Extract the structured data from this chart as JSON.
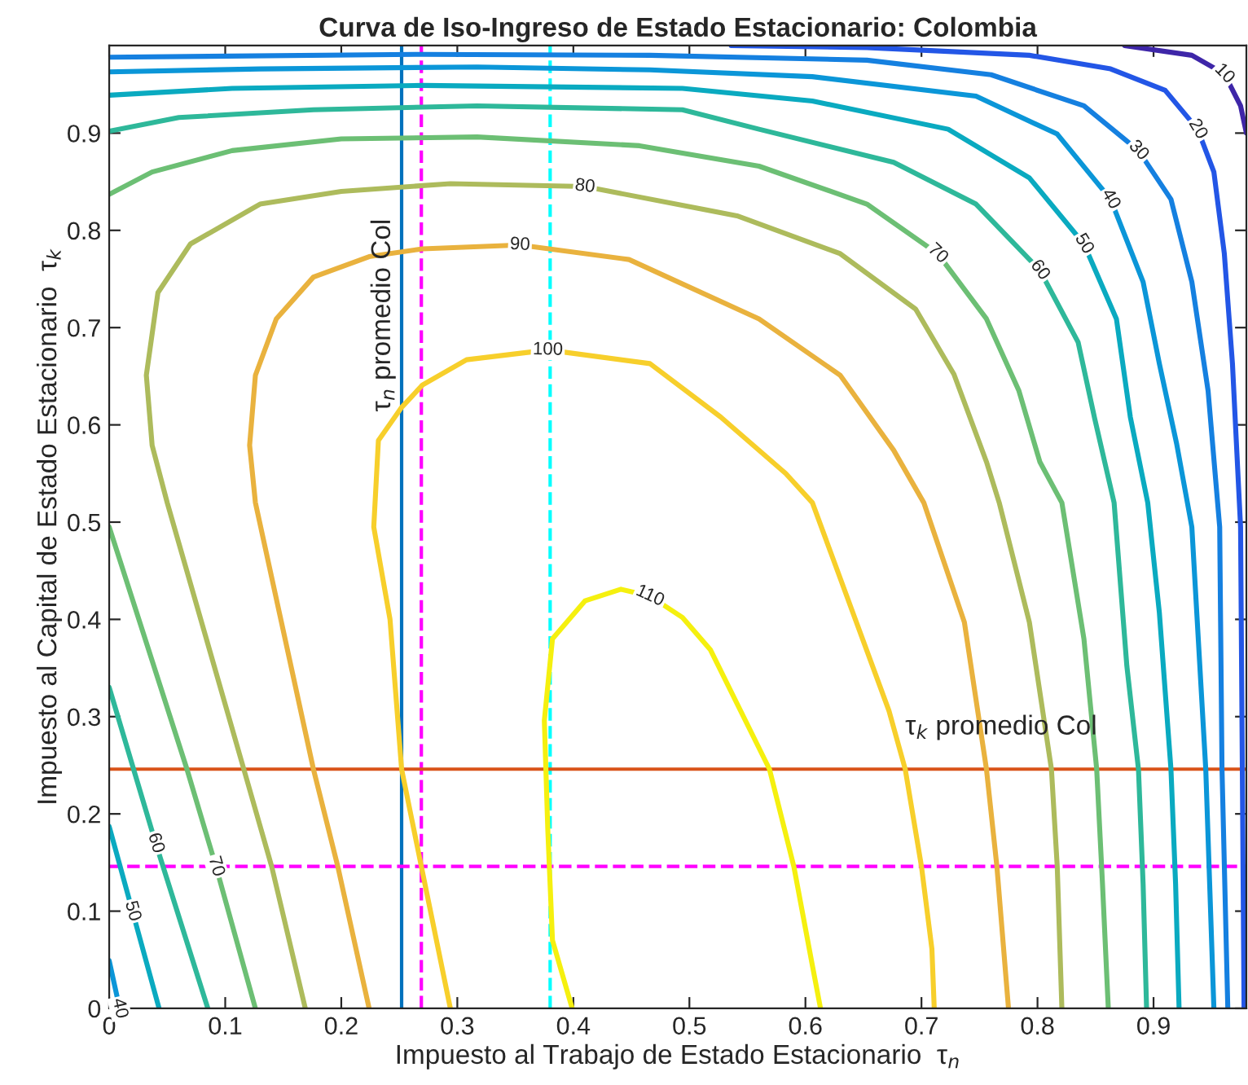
{
  "chart_data": {
    "type": "line",
    "title": "Curva de Iso-Ingreso de Estado Estacionario: Colombia",
    "xlabel": "Impuesto al Trabajo de Estado Estacionario  τ$_{n}$",
    "ylabel": "Impuesto al Capital de Estado Estacionario  τ$_{k}$",
    "xlim": [
      0,
      0.98
    ],
    "ylim": [
      0,
      0.99
    ],
    "xticks": [
      0,
      0.1,
      0.2,
      0.3,
      0.4,
      0.5,
      0.6,
      0.7,
      0.8,
      0.9
    ],
    "yticks": [
      0,
      0.1,
      0.2,
      0.3,
      0.4,
      0.5,
      0.6,
      0.7,
      0.8,
      0.9
    ],
    "grid": false,
    "legend": false,
    "line_style": "solid",
    "series": [
      {
        "name": "10",
        "color": "#3e26a8",
        "x": [
          0.875,
          0.933,
          0.961,
          0.975,
          0.98
        ],
        "values": [
          0.99,
          0.98,
          0.961,
          0.928,
          0.9
        ]
      },
      {
        "name": "20",
        "color": "#2356e6",
        "x": [
          0.536,
          0.653,
          0.793,
          0.863,
          0.91,
          0.938,
          0.952,
          0.961,
          0.968,
          0.975,
          0.978
        ],
        "values": [
          0.99,
          0.988,
          0.98,
          0.966,
          0.944,
          0.904,
          0.86,
          0.776,
          0.663,
          0.495,
          0
        ]
      },
      {
        "name": "30",
        "color": "#1580e0",
        "x": [
          0,
          0.27,
          0.466,
          0.653,
          0.76,
          0.84,
          0.887,
          0.915,
          0.933,
          0.947,
          0.957,
          0.959,
          0.964
        ],
        "values": [
          0.978,
          0.981,
          0.98,
          0.975,
          0.96,
          0.928,
          0.882,
          0.832,
          0.747,
          0.635,
          0.495,
          0.246,
          0
        ]
      },
      {
        "name": "40",
        "color": "#0b96d8",
        "x": [
          0,
          0.13,
          0.317,
          0.466,
          0.606,
          0.747,
          0.817,
          0.863,
          0.891,
          0.905,
          0.92,
          0.933,
          0.945,
          0.952
        ],
        "values": [
          0.963,
          0.966,
          0.968,
          0.965,
          0.958,
          0.938,
          0.899,
          0.832,
          0.747,
          0.663,
          0.58,
          0.495,
          0.246,
          0
        ]
      },
      {
        "name": "50",
        "color": "#0aaac0",
        "x": [
          0,
          0.106,
          0.27,
          0.494,
          0.606,
          0.723,
          0.793,
          0.84,
          0.868,
          0.88,
          0.895,
          0.905,
          0.915,
          0.919,
          0.922
        ],
        "values": [
          0.939,
          0.946,
          0.949,
          0.946,
          0.933,
          0.904,
          0.854,
          0.786,
          0.709,
          0.608,
          0.52,
          0.407,
          0.246,
          0.128,
          0
        ]
      },
      {
        "name": "60",
        "color": "#2eb89a",
        "x": [
          0,
          0.06,
          0.176,
          0.317,
          0.494,
          0.56,
          0.676,
          0.747,
          0.802,
          0.835,
          0.849,
          0.866,
          0.877,
          0.887,
          0.891,
          0.894
        ],
        "values": [
          0.902,
          0.916,
          0.924,
          0.928,
          0.924,
          0.904,
          0.87,
          0.827,
          0.759,
          0.685,
          0.608,
          0.52,
          0.352,
          0.246,
          0.128,
          0
        ]
      },
      {
        "name": "70",
        "color": "#6cbf74",
        "x": [
          0,
          0.037,
          0.106,
          0.2,
          0.317,
          0.457,
          0.56,
          0.653,
          0.714,
          0.756,
          0.784,
          0.802,
          0.821,
          0.84,
          0.851,
          0.856,
          0.861
        ],
        "values": [
          0.837,
          0.86,
          0.882,
          0.894,
          0.896,
          0.887,
          0.866,
          0.827,
          0.776,
          0.709,
          0.635,
          0.562,
          0.52,
          0.38,
          0.246,
          0.128,
          0
        ]
      },
      {
        "name": "80",
        "color": "#adbb5c",
        "x": [
          0.169,
          0.14,
          0.116,
          0.05,
          0.037,
          0.032,
          0.042,
          0.07,
          0.13,
          0.2,
          0.294,
          0.41,
          0.541,
          0.63,
          0.695,
          0.728,
          0.756,
          0.767,
          0.793,
          0.812,
          0.817,
          0.821
        ],
        "values": [
          0,
          0.146,
          0.246,
          0.52,
          0.579,
          0.651,
          0.736,
          0.786,
          0.827,
          0.84,
          0.848,
          0.845,
          0.815,
          0.776,
          0.719,
          0.652,
          0.562,
          0.52,
          0.397,
          0.246,
          0.146,
          0
        ]
      },
      {
        "name": "90",
        "color": "#e9b23e",
        "x": [
          0.224,
          0.197,
          0.176,
          0.126,
          0.121,
          0.126,
          0.144,
          0.176,
          0.224,
          0.27,
          0.354,
          0.448,
          0.56,
          0.63,
          0.676,
          0.702,
          0.737,
          0.756,
          0.765,
          0.775
        ],
        "values": [
          0,
          0.146,
          0.246,
          0.52,
          0.579,
          0.651,
          0.709,
          0.752,
          0.773,
          0.781,
          0.785,
          0.77,
          0.709,
          0.651,
          0.574,
          0.52,
          0.397,
          0.246,
          0.146,
          0
        ]
      },
      {
        "name": "100",
        "color": "#f7cf2b",
        "x": [
          0.294,
          0.269,
          0.252,
          0.242,
          0.228,
          0.232,
          0.252,
          0.27,
          0.308,
          0.378,
          0.466,
          0.527,
          0.583,
          0.606,
          0.672,
          0.686,
          0.7,
          0.709,
          0.711
        ],
        "values": [
          0,
          0.146,
          0.246,
          0.4,
          0.495,
          0.584,
          0.618,
          0.641,
          0.667,
          0.677,
          0.663,
          0.608,
          0.55,
          0.52,
          0.306,
          0.246,
          0.146,
          0.061,
          0
        ]
      },
      {
        "name": "110",
        "color": "#f5f00f",
        "x": [
          0.399,
          0.382,
          0.378,
          0.375,
          0.382,
          0.41,
          0.441,
          0.466,
          0.494,
          0.518,
          0.569,
          0.59,
          0.606,
          0.613
        ],
        "values": [
          0,
          0.07,
          0.183,
          0.296,
          0.38,
          0.419,
          0.431,
          0.424,
          0.402,
          0.369,
          0.246,
          0.146,
          0.044,
          0
        ]
      },
      {
        "name": "40",
        "color": "#0b96d8",
        "x": [
          0,
          0.009
        ],
        "values": [
          0.049,
          0
        ]
      },
      {
        "name": "50",
        "color": "#0aaac0",
        "x": [
          0,
          0.02,
          0.043
        ],
        "values": [
          0.187,
          0.1,
          0
        ]
      },
      {
        "name": "60",
        "color": "#2eb89a",
        "x": [
          0,
          0.04,
          0.085
        ],
        "values": [
          0.33,
          0.17,
          0
        ]
      },
      {
        "name": "70",
        "color": "#6cbf74",
        "x": [
          0,
          0.067,
          0.092,
          0.126
        ],
        "values": [
          0.495,
          0.246,
          0.146,
          0
        ]
      }
    ],
    "ref_lines": [
      {
        "axis": "x",
        "value": 0.252,
        "label": "τ$_{n}$ promedio Col",
        "color": "#0072bd",
        "line_style": "solid"
      },
      {
        "axis": "x",
        "value": 0.269,
        "label": null,
        "color": "#ff00ff",
        "line_style": "dashed"
      },
      {
        "axis": "x",
        "value": 0.38,
        "label": null,
        "color": "#00ffff",
        "line_style": "dashed"
      },
      {
        "axis": "y",
        "value": 0.246,
        "label": "τ$_{k}$ promedio Col",
        "color": "#d95319",
        "line_style": "solid"
      },
      {
        "axis": "y",
        "value": 0.146,
        "label": null,
        "color": "#ff00ff",
        "line_style": "dashed"
      }
    ]
  }
}
